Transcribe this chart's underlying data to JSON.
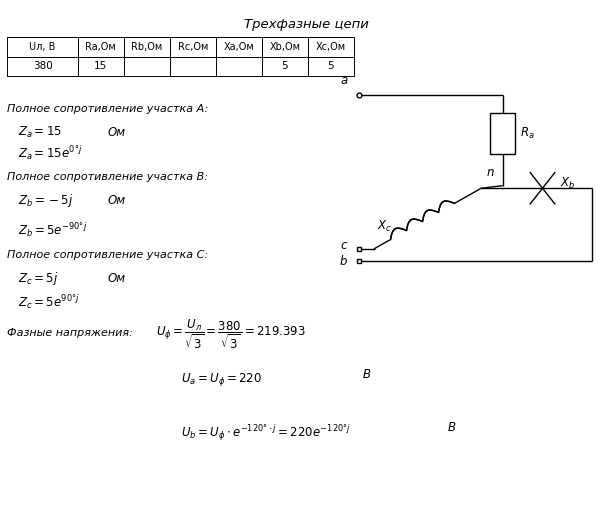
{
  "title": "Трехфазные цепи",
  "table_headers": [
    "Uл, В",
    "Ra,Ом",
    "Rb,Ом",
    "Rc,Ом",
    "Xa,Ом",
    "Xb,Ом",
    "Xc,Ом"
  ],
  "table_values": [
    "380",
    "15",
    "",
    "",
    "",
    "5",
    "5"
  ],
  "bg_color": "#ffffff",
  "text_color": "#000000",
  "fig_w": 6.13,
  "fig_h": 5.2,
  "dpi": 100
}
